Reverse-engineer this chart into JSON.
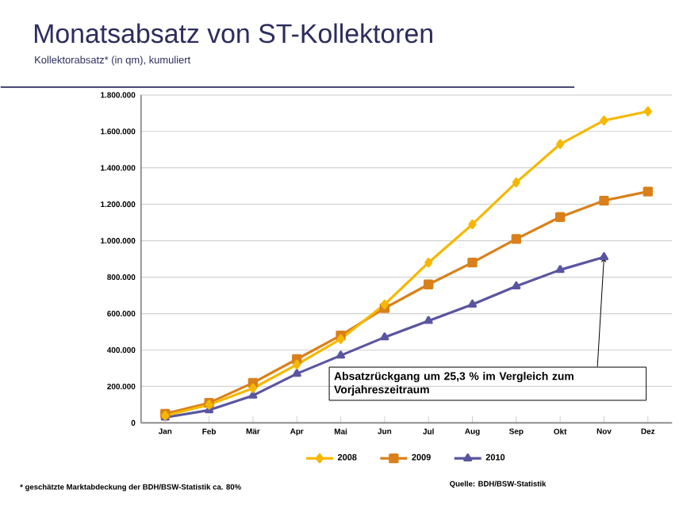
{
  "chart_data": {
    "type": "line",
    "title": "Monatsabsatz von ST-Kollektoren",
    "subtitle": "Kollektorabsatz* (in qm), kumuliert",
    "categories": [
      "Jan",
      "Feb",
      "Mär",
      "Apr",
      "Mai",
      "Jun",
      "Jul",
      "Aug",
      "Sep",
      "Okt",
      "Nov",
      "Dez"
    ],
    "series": [
      {
        "name": "2008",
        "color": "#f5b800",
        "marker": "diamond",
        "values": [
          40000,
          100000,
          190000,
          320000,
          460000,
          650000,
          880000,
          1090000,
          1320000,
          1530000,
          1660000,
          1710000
        ]
      },
      {
        "name": "2009",
        "color": "#d9801a",
        "marker": "square",
        "values": [
          50000,
          110000,
          220000,
          350000,
          480000,
          630000,
          760000,
          880000,
          1010000,
          1130000,
          1220000,
          1270000
        ]
      },
      {
        "name": "2010",
        "color": "#5a55a0",
        "marker": "triangle",
        "values": [
          30000,
          70000,
          150000,
          270000,
          370000,
          470000,
          560000,
          650000,
          750000,
          840000,
          910000,
          null
        ]
      }
    ],
    "ylim": [
      0,
      1800000
    ],
    "yticks": [
      {
        "value": 0,
        "label": "0"
      },
      {
        "value": 200000,
        "label": "200.000"
      },
      {
        "value": 400000,
        "label": "400.000"
      },
      {
        "value": 600000,
        "label": "600.000"
      },
      {
        "value": 800000,
        "label": "800.000"
      },
      {
        "value": 1000000,
        "label": "1.000.000"
      },
      {
        "value": 1200000,
        "label": "1.200.000"
      },
      {
        "value": 1400000,
        "label": "1.400.000"
      },
      {
        "value": 1600000,
        "label": "1.600.000"
      },
      {
        "value": 1800000,
        "label": "1.800.000"
      }
    ],
    "grid": "y",
    "legend": "bottom",
    "line_style": "solid",
    "annotations": [
      "Absatzrückgang um 25,3 % im Vergleich zum Vorjahreszeitraum",
      "* geschätzte Marktabdeckung der BDH/BSW-Statistik ca. 80%",
      "Quelle: BDH/BSW-Statistik"
    ]
  }
}
